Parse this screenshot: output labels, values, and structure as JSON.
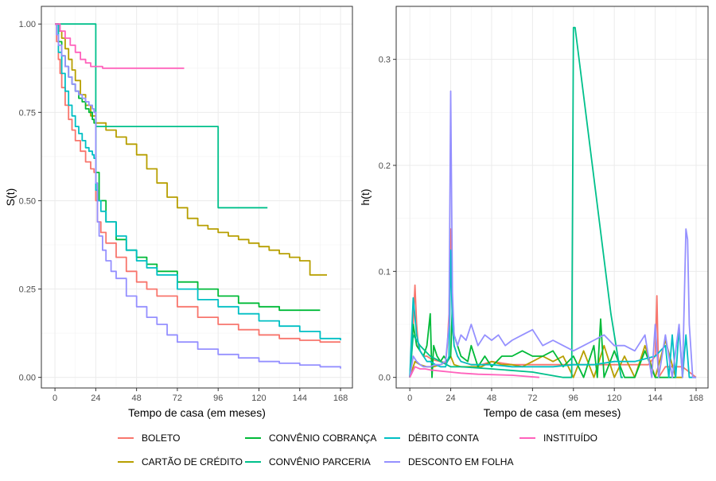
{
  "chart_data": [
    {
      "type": "line",
      "step": true,
      "xlabel": "Tempo de casa (em meses)",
      "ylabel": "S(t)",
      "xlim": [
        -8,
        175
      ],
      "ylim": [
        -0.03,
        1.05
      ],
      "xticks": [
        "0",
        "24",
        "48",
        "72",
        "96",
        "120",
        "144",
        "168"
      ],
      "yticks": [
        "0.00",
        "0.25",
        "0.50",
        "0.75",
        "1.00"
      ],
      "grid": true,
      "series": [
        {
          "name": "BOLETO",
          "color": "#F8766D",
          "x": [
            0,
            1,
            2,
            3,
            4,
            6,
            8,
            10,
            12,
            15,
            18,
            21,
            23,
            24,
            25,
            27,
            30,
            36,
            42,
            48,
            54,
            60,
            72,
            84,
            96,
            108,
            120,
            132,
            144,
            156,
            168
          ],
          "y": [
            1.0,
            0.95,
            0.9,
            0.86,
            0.82,
            0.77,
            0.73,
            0.7,
            0.67,
            0.64,
            0.61,
            0.59,
            0.58,
            0.5,
            0.44,
            0.41,
            0.38,
            0.34,
            0.3,
            0.27,
            0.25,
            0.23,
            0.2,
            0.17,
            0.15,
            0.135,
            0.12,
            0.11,
            0.105,
            0.1,
            0.1
          ]
        },
        {
          "name": "CARTÃO DE CRÉDITO",
          "color": "#B79F00",
          "x": [
            0,
            2,
            4,
            6,
            8,
            10,
            12,
            15,
            18,
            21,
            24,
            30,
            36,
            42,
            48,
            54,
            60,
            66,
            72,
            78,
            84,
            90,
            96,
            102,
            108,
            114,
            120,
            126,
            132,
            138,
            144,
            150,
            160
          ],
          "y": [
            1.0,
            0.98,
            0.96,
            0.93,
            0.9,
            0.87,
            0.84,
            0.8,
            0.77,
            0.74,
            0.72,
            0.7,
            0.68,
            0.66,
            0.63,
            0.59,
            0.55,
            0.51,
            0.48,
            0.45,
            0.43,
            0.42,
            0.41,
            0.4,
            0.39,
            0.38,
            0.37,
            0.36,
            0.35,
            0.34,
            0.33,
            0.29,
            0.29
          ]
        },
        {
          "name": "CONVÊNIO COBRANÇA",
          "color": "#00BA38",
          "x": [
            0,
            2,
            4,
            6,
            8,
            10,
            12,
            14,
            16,
            18,
            20,
            22,
            23,
            24,
            26,
            30,
            36,
            42,
            48,
            54,
            60,
            72,
            84,
            96,
            108,
            120,
            132,
            144,
            156
          ],
          "y": [
            1.0,
            0.95,
            0.91,
            0.88,
            0.85,
            0.83,
            0.81,
            0.79,
            0.78,
            0.76,
            0.75,
            0.73,
            0.72,
            0.58,
            0.5,
            0.44,
            0.39,
            0.36,
            0.34,
            0.32,
            0.3,
            0.27,
            0.25,
            0.23,
            0.21,
            0.2,
            0.19,
            0.19,
            0.19
          ]
        },
        {
          "name": "CONVÊNIO PARCERIA",
          "color": "#00C08B",
          "x": [
            0,
            24,
            96,
            125
          ],
          "y": [
            1.0,
            0.71,
            0.48,
            0.48
          ]
        },
        {
          "name": "DÉBITO CONTA",
          "color": "#00BFC4",
          "x": [
            0,
            2,
            4,
            6,
            8,
            10,
            12,
            14,
            16,
            18,
            20,
            22,
            23,
            24,
            25,
            27,
            30,
            36,
            42,
            48,
            54,
            60,
            72,
            84,
            96,
            108,
            120,
            132,
            144,
            156,
            168
          ],
          "y": [
            1.0,
            0.92,
            0.86,
            0.81,
            0.77,
            0.74,
            0.71,
            0.69,
            0.67,
            0.65,
            0.64,
            0.63,
            0.62,
            0.53,
            0.5,
            0.47,
            0.44,
            0.4,
            0.36,
            0.33,
            0.31,
            0.29,
            0.25,
            0.22,
            0.2,
            0.18,
            0.16,
            0.145,
            0.13,
            0.11,
            0.105
          ]
        },
        {
          "name": "DESCONTO EM FOLHA",
          "color": "#9590FF",
          "x": [
            0,
            1,
            2,
            4,
            6,
            8,
            10,
            12,
            14,
            16,
            18,
            20,
            22,
            23,
            24,
            25,
            26,
            28,
            30,
            33,
            36,
            42,
            48,
            54,
            60,
            66,
            72,
            84,
            96,
            108,
            120,
            132,
            144,
            156,
            168
          ],
          "y": [
            1.0,
            0.97,
            0.94,
            0.91,
            0.88,
            0.85,
            0.83,
            0.81,
            0.8,
            0.79,
            0.78,
            0.77,
            0.76,
            0.75,
            0.55,
            0.44,
            0.4,
            0.36,
            0.33,
            0.3,
            0.28,
            0.23,
            0.2,
            0.17,
            0.15,
            0.12,
            0.1,
            0.08,
            0.065,
            0.055,
            0.045,
            0.04,
            0.035,
            0.03,
            0.025
          ]
        },
        {
          "name": "INSTITUÍDO",
          "color": "#FF62BC",
          "x": [
            0,
            3,
            6,
            9,
            12,
            15,
            18,
            21,
            24,
            28,
            32,
            40,
            76
          ],
          "y": [
            1.0,
            0.98,
            0.96,
            0.94,
            0.92,
            0.9,
            0.89,
            0.88,
            0.88,
            0.875,
            0.875,
            0.875,
            0.875
          ]
        }
      ]
    },
    {
      "type": "line",
      "xlabel": "Tempo de casa (em meses)",
      "ylabel": "h(t)",
      "xlim": [
        -8,
        175
      ],
      "ylim": [
        -0.01,
        0.35
      ],
      "xticks": [
        "0",
        "24",
        "48",
        "72",
        "96",
        "120",
        "144",
        "168"
      ],
      "yticks": [
        "0.0",
        "0.1",
        "0.2",
        "0.3"
      ],
      "grid": true,
      "series": [
        {
          "name": "BOLETO",
          "color": "#F8766D",
          "x": [
            0,
            1,
            2,
            3,
            4,
            5,
            6,
            8,
            10,
            12,
            15,
            18,
            21,
            22,
            23,
            24,
            25,
            26,
            28,
            30,
            36,
            42,
            48,
            60,
            72,
            84,
            96,
            108,
            120,
            130,
            140,
            144,
            145,
            146,
            150,
            160,
            168
          ],
          "y": [
            0.0,
            0.02,
            0.05,
            0.087,
            0.05,
            0.03,
            0.025,
            0.02,
            0.02,
            0.018,
            0.016,
            0.015,
            0.014,
            0.03,
            0.06,
            0.14,
            0.05,
            0.03,
            0.02,
            0.015,
            0.012,
            0.012,
            0.015,
            0.012,
            0.012,
            0.012,
            0.012,
            0.012,
            0.012,
            0.012,
            0.012,
            0.02,
            0.077,
            0.0,
            0.01,
            0.01,
            0.0
          ]
        },
        {
          "name": "CARTÃO DE CRÉDITO",
          "color": "#B79F00",
          "x": [
            0,
            3,
            6,
            10,
            14,
            18,
            22,
            24,
            26,
            30,
            36,
            42,
            48,
            54,
            60,
            66,
            72,
            78,
            84,
            90,
            96,
            102,
            108,
            114,
            120,
            126,
            132,
            138,
            144,
            150,
            156,
            160
          ],
          "y": [
            0.0,
            0.015,
            0.012,
            0.01,
            0.01,
            0.012,
            0.015,
            0.02,
            0.012,
            0.01,
            0.01,
            0.01,
            0.015,
            0.012,
            0.012,
            0.01,
            0.015,
            0.02,
            0.015,
            0.02,
            0.0,
            0.025,
            0.0,
            0.03,
            0.0,
            0.02,
            0.0,
            0.03,
            0.0,
            0.035,
            0.0,
            0.0
          ]
        },
        {
          "name": "CONVÊNIO COBRANÇA",
          "color": "#00BA38",
          "x": [
            0,
            2,
            4,
            6,
            8,
            10,
            12,
            13,
            14,
            16,
            18,
            20,
            22,
            24,
            25,
            26,
            28,
            30,
            34,
            36,
            40,
            44,
            48,
            54,
            60,
            66,
            72,
            78,
            84,
            90,
            96,
            102,
            108,
            110,
            112,
            114,
            120,
            126,
            132,
            138,
            144,
            150,
            156
          ],
          "y": [
            0.0,
            0.05,
            0.03,
            0.025,
            0.02,
            0.03,
            0.06,
            0.0,
            0.03,
            0.02,
            0.015,
            0.02,
            0.015,
            0.02,
            0.07,
            0.04,
            0.03,
            0.02,
            0.015,
            0.03,
            0.01,
            0.02,
            0.01,
            0.02,
            0.02,
            0.025,
            0.02,
            0.02,
            0.025,
            0.01,
            0.02,
            0.0,
            0.03,
            0.0,
            0.055,
            0.0,
            0.025,
            0.0,
            0.0,
            0.025,
            0.0,
            0.0,
            0.0
          ]
        },
        {
          "name": "CONVÊNIO PARCERIA",
          "color": "#00C08B",
          "x": [
            0,
            2,
            6,
            12,
            18,
            24,
            30,
            48,
            72,
            90,
            95,
            96,
            97,
            118,
            124,
            125
          ],
          "y": [
            0.0,
            0.04,
            0.03,
            0.02,
            0.015,
            0.01,
            0.01,
            0.008,
            0.005,
            0.0,
            0.0,
            0.33,
            0.33,
            0.06,
            0.0,
            0.0
          ]
        },
        {
          "name": "DÉBITO CONTA",
          "color": "#00BFC4",
          "x": [
            0,
            2,
            4,
            6,
            8,
            10,
            12,
            15,
            18,
            21,
            23,
            24,
            25,
            26,
            28,
            30,
            36,
            42,
            48,
            60,
            72,
            84,
            96,
            108,
            120,
            132,
            144,
            150,
            152,
            154,
            156,
            158,
            160,
            162,
            164,
            168
          ],
          "y": [
            0.0,
            0.075,
            0.04,
            0.025,
            0.02,
            0.015,
            0.015,
            0.012,
            0.01,
            0.01,
            0.02,
            0.12,
            0.05,
            0.03,
            0.02,
            0.015,
            0.012,
            0.012,
            0.012,
            0.01,
            0.01,
            0.01,
            0.012,
            0.012,
            0.015,
            0.015,
            0.02,
            0.03,
            0.0,
            0.04,
            0.0,
            0.046,
            0.0,
            0.04,
            0.0,
            0.0
          ]
        },
        {
          "name": "DESCONTO EM FOLHA",
          "color": "#9590FF",
          "x": [
            0,
            2,
            4,
            6,
            8,
            10,
            12,
            15,
            18,
            21,
            23,
            24,
            25,
            26,
            28,
            30,
            33,
            36,
            40,
            44,
            48,
            52,
            56,
            60,
            66,
            72,
            78,
            84,
            90,
            96,
            102,
            108,
            114,
            120,
            126,
            132,
            138,
            142,
            144,
            146,
            150,
            154,
            158,
            160,
            162,
            163,
            164,
            166,
            168
          ],
          "y": [
            0.0,
            0.02,
            0.015,
            0.012,
            0.01,
            0.01,
            0.01,
            0.012,
            0.012,
            0.015,
            0.05,
            0.27,
            0.08,
            0.04,
            0.03,
            0.04,
            0.035,
            0.05,
            0.03,
            0.04,
            0.035,
            0.04,
            0.03,
            0.035,
            0.04,
            0.045,
            0.03,
            0.035,
            0.03,
            0.025,
            0.03,
            0.035,
            0.04,
            0.03,
            0.03,
            0.025,
            0.04,
            0.0,
            0.05,
            0.0,
            0.04,
            0.0,
            0.05,
            0.0,
            0.14,
            0.13,
            0.05,
            0.0,
            0.0
          ]
        },
        {
          "name": "INSTITUÍDO",
          "color": "#FF62BC",
          "x": [
            0,
            3,
            6,
            9,
            12,
            18,
            24,
            30,
            40,
            60,
            76
          ],
          "y": [
            0.0,
            0.01,
            0.008,
            0.008,
            0.007,
            0.006,
            0.005,
            0.004,
            0.003,
            0.002,
            0.0
          ]
        }
      ]
    }
  ],
  "legend": {
    "placement": "bottom",
    "items": [
      {
        "label": "BOLETO",
        "color": "#F8766D"
      },
      {
        "label": "CARTÃO DE CRÉDITO",
        "color": "#B79F00"
      },
      {
        "label": "CONVÊNIO COBRANÇA",
        "color": "#00BA38"
      },
      {
        "label": "CONVÊNIO PARCERIA",
        "color": "#00C08B"
      },
      {
        "label": "DÉBITO CONTA",
        "color": "#00BFC4"
      },
      {
        "label": "DESCONTO EM FOLHA",
        "color": "#9590FF"
      },
      {
        "label": "INSTITUÍDO",
        "color": "#FF62BC"
      }
    ]
  }
}
